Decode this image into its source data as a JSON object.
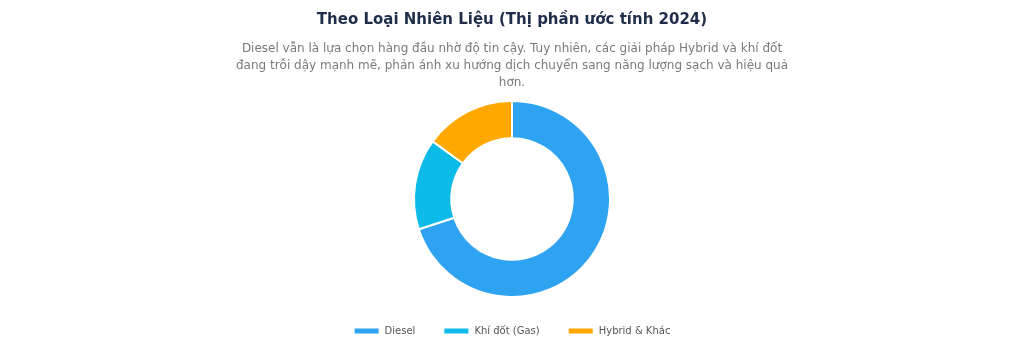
{
  "chart_data": {
    "type": "donut",
    "title": "Theo Loại Nhiên Liệu (Thị phần ước tính 2024)",
    "subtitle": "Diesel vẫn là lựa chọn hàng đầu nhờ độ tin cậy. Tuy nhiên, các giải pháp Hybrid và khí đốt đang trỗi dậy mạnh mẽ, phản ánh xu hướng dịch chuyển sang năng lượng sạch và hiệu quả hơn.",
    "categories": [
      "Diesel",
      "Khí đốt (Gas)",
      "Hybrid & Khác"
    ],
    "values": [
      70,
      15,
      15
    ],
    "colors": [
      "#2ea3f2",
      "#0cbbe8",
      "#ffa800"
    ],
    "legend": "bottom"
  }
}
